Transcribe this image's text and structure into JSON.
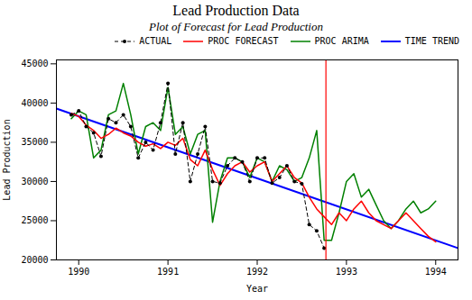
{
  "chart_data": {
    "type": "line",
    "title": "Lead Production Data",
    "subtitle": "Plot of Forecast for Lead Production",
    "xlabel": "Year",
    "ylabel": "Lead Production",
    "xlim": [
      1989.75,
      1994.25
    ],
    "ylim": [
      20000,
      45500
    ],
    "xticks": [
      1990,
      1991,
      1992,
      1993,
      1994
    ],
    "yticks": [
      20000,
      25000,
      30000,
      35000,
      40000,
      45000
    ],
    "grid": false,
    "legend": "upper right",
    "vlines": [
      {
        "x": 1992.77,
        "color": "#FF0000"
      }
    ],
    "series": [
      {
        "name": "ACTUAL",
        "color": "#000000",
        "marker": "circle",
        "line_style": "dashed",
        "x": [
          1989.917,
          1990.0,
          1990.083,
          1990.167,
          1990.25,
          1990.333,
          1990.417,
          1990.5,
          1990.583,
          1990.667,
          1990.75,
          1990.833,
          1990.917,
          1991.0,
          1991.083,
          1991.167,
          1991.25,
          1991.333,
          1991.417,
          1991.5,
          1991.583,
          1991.667,
          1991.75,
          1991.833,
          1991.917,
          1992.0,
          1992.083,
          1992.167,
          1992.25,
          1992.333,
          1992.417,
          1992.5,
          1992.583,
          1992.667,
          1992.75
        ],
        "values": [
          38500,
          39000,
          37000,
          36200,
          33200,
          38000,
          37500,
          38500,
          37000,
          33000,
          35000,
          34000,
          37500,
          42500,
          33500,
          37500,
          30000,
          33500,
          37000,
          30000,
          29800,
          32000,
          33000,
          32500,
          30000,
          33000,
          33000,
          29800,
          30500,
          32000,
          30000,
          29700,
          24500,
          23700,
          21500
        ]
      },
      {
        "name": "PROC FORECAST",
        "color": "#FF0000",
        "line_style": "solid",
        "x": [
          1989.917,
          1990.0,
          1990.083,
          1990.167,
          1990.25,
          1990.333,
          1990.417,
          1990.5,
          1990.583,
          1990.667,
          1990.75,
          1990.833,
          1990.917,
          1991.0,
          1991.083,
          1991.167,
          1991.25,
          1991.333,
          1991.417,
          1991.5,
          1991.583,
          1991.667,
          1991.75,
          1991.833,
          1991.917,
          1992.0,
          1992.083,
          1992.167,
          1992.25,
          1992.333,
          1992.417,
          1992.5,
          1992.583,
          1992.667,
          1992.75,
          1992.833,
          1992.917,
          1993.0,
          1993.083,
          1993.167,
          1993.25,
          1993.333,
          1993.417,
          1993.5,
          1993.583,
          1993.667,
          1993.75,
          1993.833,
          1993.917,
          1994.0
        ],
        "values": [
          38700,
          38300,
          37200,
          36500,
          35500,
          36000,
          36800,
          36200,
          35800,
          35000,
          34500,
          34800,
          34200,
          35000,
          34600,
          35500,
          32800,
          32000,
          34000,
          31500,
          29500,
          31000,
          32000,
          32500,
          31200,
          32000,
          32500,
          30000,
          31000,
          32000,
          30500,
          29800,
          28000,
          26500,
          25500,
          24500,
          26000,
          25000,
          26500,
          27500,
          26000,
          25000,
          24500,
          24000,
          25000,
          26000,
          25000,
          24000,
          23000,
          22300
        ]
      },
      {
        "name": "PROC ARIMA",
        "color": "#008000",
        "line_style": "solid",
        "x": [
          1989.917,
          1990.0,
          1990.083,
          1990.167,
          1990.25,
          1990.333,
          1990.417,
          1990.5,
          1990.583,
          1990.667,
          1990.75,
          1990.833,
          1990.917,
          1991.0,
          1991.083,
          1991.167,
          1991.25,
          1991.333,
          1991.417,
          1991.5,
          1991.583,
          1991.667,
          1991.75,
          1991.833,
          1991.917,
          1992.0,
          1992.083,
          1992.167,
          1992.25,
          1992.333,
          1992.417,
          1992.5,
          1992.583,
          1992.667,
          1992.75,
          1992.833,
          1992.917,
          1993.0,
          1993.083,
          1993.167,
          1993.25,
          1993.333,
          1993.417,
          1993.5,
          1993.583,
          1993.667,
          1993.75,
          1993.833,
          1993.917,
          1994.0
        ],
        "values": [
          38000,
          39000,
          38500,
          33000,
          34000,
          38500,
          39000,
          42500,
          38500,
          33500,
          37000,
          37500,
          36500,
          42000,
          36000,
          37000,
          33500,
          36000,
          36500,
          24800,
          30000,
          33000,
          33000,
          32500,
          30500,
          33000,
          32500,
          30000,
          32000,
          31500,
          30000,
          30500,
          33000,
          36500,
          22500,
          22500,
          26000,
          30000,
          31000,
          28000,
          29000,
          27000,
          25000,
          24000,
          25000,
          26500,
          27500,
          26000,
          26500,
          27500
        ]
      },
      {
        "name": "TIME TREND",
        "color": "#0000FF",
        "line_style": "solid",
        "x": [
          1989.75,
          1994.25
        ],
        "values": [
          39300,
          21500
        ]
      }
    ]
  }
}
